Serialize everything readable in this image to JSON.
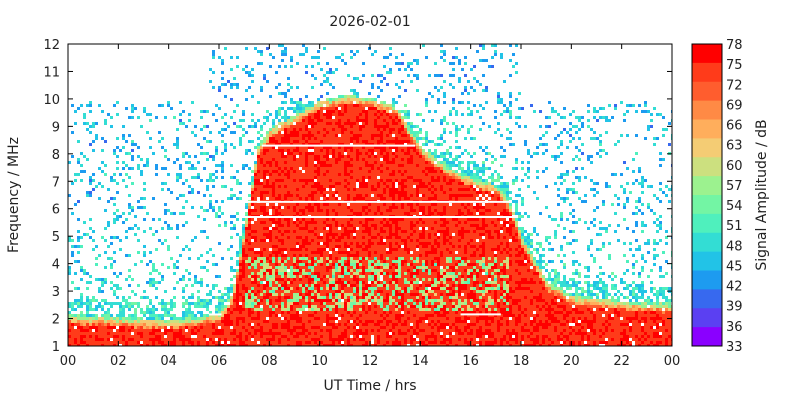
{
  "chart_data": {
    "type": "heatmap",
    "title": "2026-02-01",
    "xlabel": "UT Time / hrs",
    "ylabel": "Frequency / MHz",
    "colorbar_label": "Signal Amplitude / dB",
    "xlim": [
      0,
      24
    ],
    "ylim": [
      1,
      12
    ],
    "x_ticks": [
      "00",
      "02",
      "04",
      "06",
      "08",
      "10",
      "12",
      "14",
      "16",
      "18",
      "20",
      "22",
      "00"
    ],
    "y_ticks": [
      "1",
      "2",
      "3",
      "4",
      "5",
      "6",
      "7",
      "8",
      "9",
      "10",
      "11",
      "12"
    ],
    "colorbar": {
      "min": 33,
      "max": 78,
      "ticks": [
        "78",
        "75",
        "72",
        "69",
        "66",
        "63",
        "60",
        "57",
        "54",
        "51",
        "48",
        "45",
        "42",
        "39",
        "36",
        "33"
      ],
      "colors": [
        "#ff0000",
        "#ff3b1a",
        "#ff5d2e",
        "#ff8a45",
        "#ffae5c",
        "#f4cc74",
        "#cce07f",
        "#9cf28f",
        "#73f5a4",
        "#4ff0bd",
        "#33ddd4",
        "#22c3e7",
        "#1d9bf0",
        "#3769ef",
        "#5b40f2",
        "#8a00ff"
      ]
    },
    "frequency_envelope": {
      "description": "Upper edge (MHz) of dense high-amplitude signal versus UT hour",
      "hours": [
        0,
        2,
        4,
        5,
        6,
        6.5,
        7,
        7.5,
        8,
        9,
        10,
        11,
        12,
        13,
        13.5,
        14,
        15,
        16,
        17,
        17.5,
        18,
        19,
        20,
        21,
        22,
        24
      ],
      "top_mhz": [
        2.2,
        2.1,
        2.0,
        2.1,
        2.3,
        3.0,
        5.5,
        8.3,
        9.0,
        9.5,
        10.0,
        10.2,
        10.1,
        9.8,
        9.0,
        8.3,
        7.6,
        7.2,
        6.9,
        6.3,
        5.0,
        3.4,
        2.9,
        2.8,
        2.7,
        2.6
      ]
    },
    "background_noise_band_mhz": [
      1,
      10
    ],
    "sparse_high_band": {
      "hours": [
        5.5,
        18
      ],
      "mhz": [
        10,
        12
      ]
    }
  }
}
